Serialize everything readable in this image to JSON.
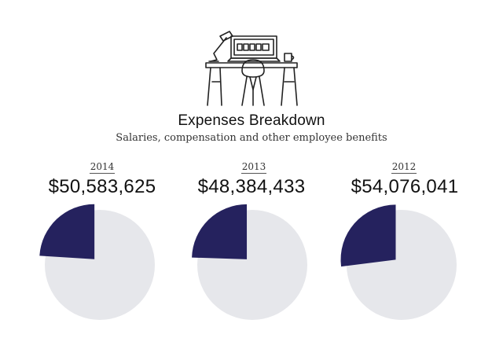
{
  "chart_data": {
    "type": "pie",
    "title": "Expenses Breakdown",
    "subtitle": "Salaries, compensation and other employee benefits",
    "charts": [
      {
        "year": "2014",
        "amount": "$50,583,625",
        "highlight_fraction": 0.24
      },
      {
        "year": "2013",
        "amount": "$48,384,433",
        "highlight_fraction": 0.245
      },
      {
        "year": "2012",
        "amount": "$54,076,041",
        "highlight_fraction": 0.27
      }
    ],
    "colors": {
      "highlight": "#25225e",
      "rest": "#e6e7eb"
    }
  }
}
